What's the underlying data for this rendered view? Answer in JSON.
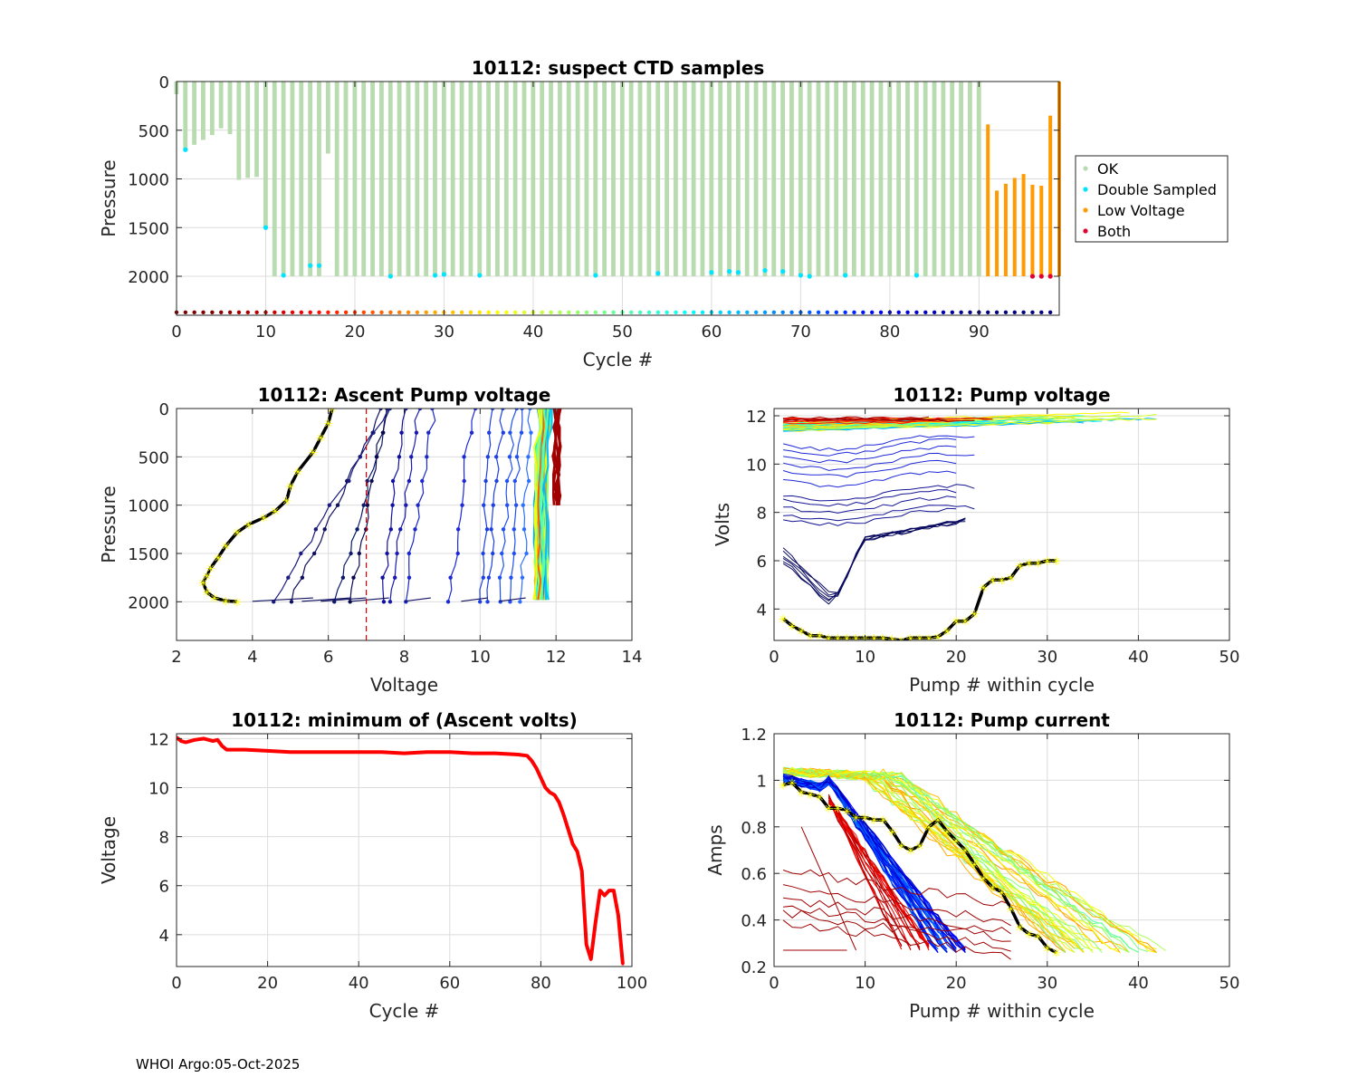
{
  "footer": "WHOI Argo:05-Oct-2025",
  "colors": {
    "ok": "#b8dbb0",
    "double": "#00e5ff",
    "low": "#ff9a00",
    "both": "#e00030",
    "min_volt_line": "#ff0000",
    "threshold": "#d40000",
    "grid": "#dcdcdc",
    "highlight": "#ffff00"
  },
  "chart_data": [
    {
      "id": "suspect",
      "type": "bar",
      "title": "10112: suspect CTD samples",
      "xlabel": "Cycle #",
      "ylabel": "Pressure",
      "xlim": [
        0,
        99
      ],
      "ylim": [
        2400,
        0
      ],
      "xticks": [
        0,
        10,
        20,
        30,
        40,
        50,
        60,
        70,
        80,
        90
      ],
      "yticks": [
        0,
        500,
        1000,
        1500,
        2000
      ],
      "legend": [
        "OK",
        "Double Sampled",
        "Low Voltage",
        "Both"
      ],
      "legend_position": "outside-right",
      "ok_depths": [
        {
          "cycle": 0,
          "p": 130
        },
        {
          "cycle": 1,
          "p": 700
        },
        {
          "cycle": 2,
          "p": 650
        },
        {
          "cycle": 3,
          "p": 600
        },
        {
          "cycle": 4,
          "p": 550
        },
        {
          "cycle": 5,
          "p": 480
        },
        {
          "cycle": 6,
          "p": 540
        },
        {
          "cycle": 7,
          "p": 1010
        },
        {
          "cycle": 8,
          "p": 990
        },
        {
          "cycle": 9,
          "p": 980
        },
        {
          "cycle": 10,
          "p": 1500
        },
        {
          "cycle": 17,
          "p": 740
        }
      ],
      "deep_ok_range": [
        11,
        90
      ],
      "deep_ok_pressure": 2000,
      "low_voltage": [
        {
          "cycle": 91,
          "p": 440
        },
        {
          "cycle": 92,
          "p": 1120
        },
        {
          "cycle": 93,
          "p": 1050
        },
        {
          "cycle": 94,
          "p": 990
        },
        {
          "cycle": 95,
          "p": 950
        },
        {
          "cycle": 96,
          "p": 1060
        },
        {
          "cycle": 97,
          "p": 1070
        },
        {
          "cycle": 98,
          "p": 350
        },
        {
          "cycle": 99,
          "p": 0
        }
      ],
      "double_sampled": [
        {
          "cycle": 1,
          "p": 700
        },
        {
          "cycle": 10,
          "p": 1500
        },
        {
          "cycle": 12,
          "p": 1990
        },
        {
          "cycle": 15,
          "p": 1890
        },
        {
          "cycle": 16,
          "p": 1890
        },
        {
          "cycle": 24,
          "p": 2000
        },
        {
          "cycle": 29,
          "p": 1990
        },
        {
          "cycle": 30,
          "p": 1980
        },
        {
          "cycle": 34,
          "p": 1990
        },
        {
          "cycle": 47,
          "p": 1990
        },
        {
          "cycle": 54,
          "p": 1970
        },
        {
          "cycle": 60,
          "p": 1960
        },
        {
          "cycle": 62,
          "p": 1950
        },
        {
          "cycle": 63,
          "p": 1960
        },
        {
          "cycle": 66,
          "p": 1940
        },
        {
          "cycle": 68,
          "p": 1950
        },
        {
          "cycle": 70,
          "p": 1990
        },
        {
          "cycle": 71,
          "p": 2000
        },
        {
          "cycle": 75,
          "p": 1990
        },
        {
          "cycle": 83,
          "p": 1990
        }
      ],
      "both": [
        {
          "cycle": 96,
          "p": 2000
        },
        {
          "cycle": 97,
          "p": 2000
        },
        {
          "cycle": 98,
          "p": 2000
        }
      ]
    },
    {
      "id": "ascent",
      "type": "line",
      "title": "10112: Ascent Pump voltage",
      "xlabel": "Voltage",
      "ylabel": "Pressure",
      "xlim": [
        2,
        14
      ],
      "ylim": [
        2400,
        0
      ],
      "xticks": [
        2,
        4,
        6,
        8,
        10,
        12,
        14
      ],
      "yticks": [
        0,
        500,
        1000,
        1500,
        2000
      ],
      "threshold_voltage": 7,
      "highlight_profile": {
        "voltage": [
          6.1,
          6.0,
          5.8,
          5.6,
          5.2,
          5.0,
          4.9,
          4.6,
          4.3,
          3.9,
          3.6,
          3.3,
          3.1,
          2.9,
          2.8,
          2.7,
          2.8,
          3.0,
          3.3,
          3.6
        ],
        "pressure": [
          0,
          150,
          300,
          450,
          650,
          800,
          950,
          1060,
          1130,
          1200,
          1280,
          1420,
          1540,
          1650,
          1730,
          1800,
          1900,
          1960,
          1990,
          2000
        ]
      }
    },
    {
      "id": "pumpvolt",
      "type": "line",
      "title": "10112: Pump voltage",
      "xlabel": "Pump # within cycle",
      "ylabel": "Volts",
      "xlim": [
        0,
        50
      ],
      "ylim": [
        2.7,
        12.3
      ],
      "xticks": [
        0,
        10,
        20,
        30,
        40,
        50
      ],
      "yticks": [
        4,
        6,
        8,
        10,
        12
      ],
      "highlight_cycle": {
        "pump": [
          1,
          2,
          3,
          4,
          5,
          6,
          7,
          8,
          9,
          10,
          11,
          12,
          13,
          14,
          15,
          16,
          17,
          18,
          19,
          20,
          21,
          22,
          23,
          24,
          25,
          26,
          27,
          28,
          29,
          30,
          31
        ],
        "volts": [
          3.6,
          3.3,
          3.1,
          2.9,
          2.9,
          2.8,
          2.8,
          2.8,
          2.8,
          2.8,
          2.8,
          2.8,
          2.75,
          2.7,
          2.8,
          2.8,
          2.8,
          2.85,
          3.1,
          3.5,
          3.5,
          3.8,
          4.9,
          5.2,
          5.2,
          5.3,
          5.8,
          5.9,
          5.9,
          6.0,
          6.0
        ]
      }
    },
    {
      "id": "minvolt",
      "type": "line",
      "title": "10112: minimum of (Ascent volts)",
      "xlabel": "Cycle #",
      "ylabel": "Voltage",
      "xlim": [
        0,
        100
      ],
      "ylim": [
        2.7,
        12.2
      ],
      "xticks": [
        0,
        20,
        40,
        60,
        80,
        100
      ],
      "yticks": [
        4,
        6,
        8,
        10,
        12
      ],
      "x": [
        0,
        1,
        2,
        4,
        6,
        8,
        9,
        10,
        11,
        15,
        20,
        25,
        30,
        35,
        40,
        45,
        50,
        55,
        60,
        65,
        70,
        75,
        77,
        78,
        79,
        80,
        81,
        82,
        83,
        84,
        85,
        86,
        87,
        88,
        89,
        90,
        91,
        92,
        93,
        94,
        95,
        96,
        97,
        98
      ],
      "y": [
        12.05,
        11.9,
        11.85,
        11.95,
        12.0,
        11.9,
        11.95,
        11.7,
        11.55,
        11.55,
        11.5,
        11.45,
        11.45,
        11.45,
        11.45,
        11.45,
        11.4,
        11.45,
        11.45,
        11.4,
        11.4,
        11.35,
        11.3,
        11.1,
        10.8,
        10.4,
        10.0,
        9.8,
        9.7,
        9.4,
        8.9,
        8.3,
        7.7,
        7.4,
        6.6,
        3.6,
        3.0,
        4.5,
        5.8,
        5.6,
        5.8,
        5.8,
        4.8,
        2.8
      ]
    },
    {
      "id": "pumpcur",
      "type": "line",
      "title": "10112: Pump current",
      "xlabel": "Pump # within cycle",
      "ylabel": "Amps",
      "xlim": [
        0,
        50
      ],
      "ylim": [
        0.2,
        1.2
      ],
      "xticks": [
        0,
        10,
        20,
        30,
        40,
        50
      ],
      "yticks": [
        0.2,
        0.4,
        0.6,
        0.8,
        1,
        1.2
      ],
      "highlight_cycle": {
        "pump": [
          1,
          2,
          3,
          4,
          5,
          6,
          7,
          8,
          9,
          10,
          11,
          12,
          13,
          14,
          15,
          16,
          17,
          18,
          19,
          20,
          21,
          22,
          23,
          24,
          25,
          26,
          27,
          28,
          29,
          30,
          31
        ],
        "amps": [
          0.98,
          0.99,
          0.95,
          0.94,
          0.93,
          0.88,
          0.88,
          0.87,
          0.84,
          0.84,
          0.83,
          0.83,
          0.78,
          0.72,
          0.7,
          0.72,
          0.8,
          0.83,
          0.78,
          0.74,
          0.7,
          0.64,
          0.58,
          0.54,
          0.52,
          0.45,
          0.37,
          0.34,
          0.33,
          0.28,
          0.26
        ]
      }
    }
  ]
}
